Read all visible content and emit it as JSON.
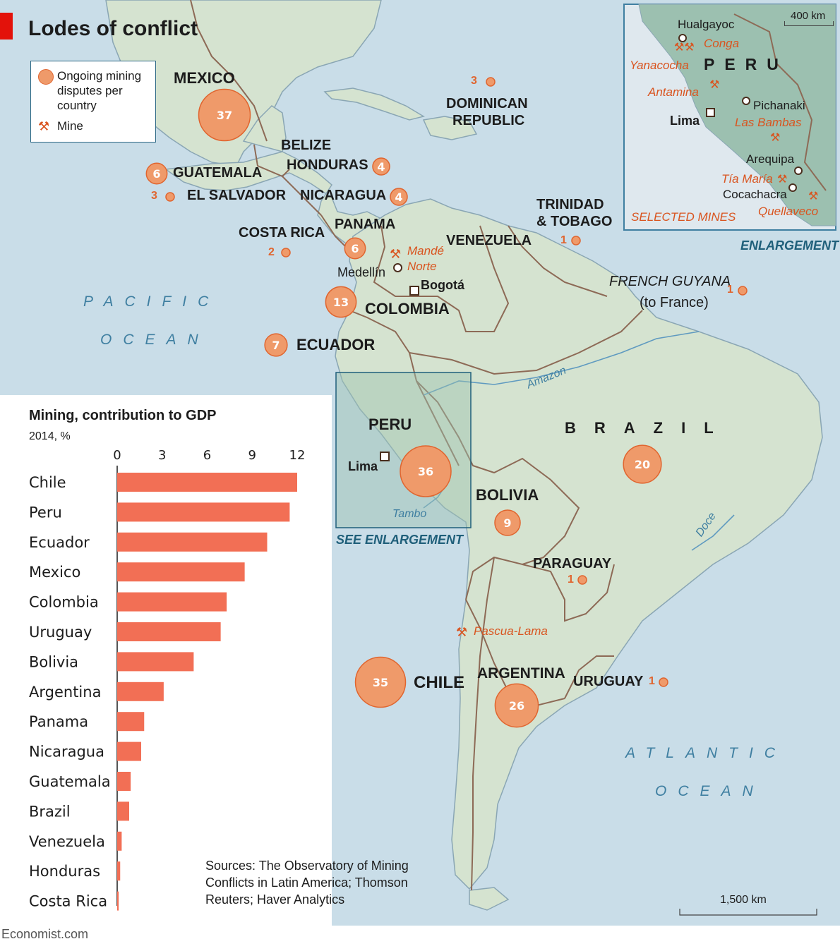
{
  "title": "Lodes of conflict",
  "legend": {
    "disputes_label": "Ongoing mining disputes per country",
    "mine_label": "Mine"
  },
  "oceans": {
    "pacific_1": "PACIFIC",
    "pacific_2": "OCEAN",
    "atlantic_1": "ATLANTIC",
    "atlantic_2": "OCEAN"
  },
  "countries": {
    "mexico": {
      "name": "MEXICO",
      "disputes": "37"
    },
    "guatemala": {
      "name": "GUATEMALA",
      "disputes": "6"
    },
    "el_salvador": {
      "name": "EL SALVADOR",
      "disputes": "3"
    },
    "belize": {
      "name": "BELIZE"
    },
    "honduras": {
      "name": "HONDURAS",
      "disputes": "4"
    },
    "nicaragua": {
      "name": "NICARAGUA",
      "disputes": "4"
    },
    "costa_rica": {
      "name": "COSTA RICA",
      "disputes": "2"
    },
    "panama": {
      "name": "PANAMA",
      "disputes": "6"
    },
    "dominican_republic": {
      "name_1": "DOMINICAN",
      "name_2": "REPUBLIC",
      "disputes": "3"
    },
    "trinidad": {
      "name_1": "TRINIDAD",
      "name_2": "& TOBAGO",
      "disputes": "1"
    },
    "venezuela": {
      "name": "VENEZUELA"
    },
    "french_guyana": {
      "name_1": "FRENCH GUYANA",
      "name_2": "(to France)",
      "disputes": "1"
    },
    "colombia": {
      "name": "COLOMBIA",
      "disputes": "13"
    },
    "ecuador": {
      "name": "ECUADOR",
      "disputes": "7"
    },
    "peru": {
      "name": "PERU",
      "disputes": "36"
    },
    "bolivia": {
      "name": "BOLIVIA",
      "disputes": "9"
    },
    "brazil": {
      "name": "BRAZIL",
      "disputes": "20"
    },
    "paraguay": {
      "name": "PARAGUAY",
      "disputes": "1"
    },
    "chile": {
      "name": "CHILE",
      "disputes": "35"
    },
    "argentina": {
      "name": "ARGENTINA",
      "disputes": "26"
    },
    "uruguay": {
      "name": "URUGUAY",
      "disputes": "1"
    }
  },
  "cities": {
    "medellin": "Medellín",
    "bogota": "Bogotá",
    "lima": "Lima"
  },
  "mines": {
    "mande_1": "Mandé",
    "mande_2": "Norte",
    "pascua_lama": "Pascua-Lama"
  },
  "rivers": {
    "amazon": "Amazon",
    "tambo": "Tambo",
    "doce": "Doce"
  },
  "see_enlargement": "SEE ENLARGEMENT",
  "scale_main": "1,500 km",
  "inset": {
    "country": "PERU",
    "scale": "400 km",
    "hualgayoc": "Hualgayoc",
    "conga": "Conga",
    "yanacocha": "Yanacocha",
    "antamina": "Antamina",
    "pichanaki": "Pichanaki",
    "lima": "Lima",
    "las_bambas": "Las Bambas",
    "arequipa": "Arequipa",
    "tia_maria": "Tía María",
    "cocachacra": "Cocachacra",
    "quellaveco": "Quellaveco",
    "selected_mines": "SELECTED MINES",
    "enlargement": "ENLARGEMENT"
  },
  "sources": {
    "line1": "Sources: The Observatory of Mining",
    "line2": "Conflicts in Latin America; Thomson",
    "line3": "Reuters; Haver Analytics"
  },
  "footer": "Economist.com",
  "colors": {
    "bar": "#f26f55",
    "land": "#d5e3d0",
    "sea": "#c9dde8",
    "border": "#8d6a56",
    "accent": "#e3120b"
  },
  "chart_data": {
    "type": "bar",
    "orientation": "horizontal",
    "title": "Mining, contribution to GDP",
    "subtitle": "2014, %",
    "categories": [
      "Chile",
      "Peru",
      "Ecuador",
      "Mexico",
      "Colombia",
      "Uruguay",
      "Bolivia",
      "Argentina",
      "Panama",
      "Nicaragua",
      "Guatemala",
      "Brazil",
      "Venezuela",
      "Honduras",
      "Costa Rica"
    ],
    "values": [
      12.0,
      11.5,
      10.0,
      8.5,
      7.3,
      6.9,
      5.1,
      3.1,
      1.8,
      1.6,
      0.9,
      0.8,
      0.3,
      0.2,
      0.1
    ],
    "xlim": [
      0,
      12
    ],
    "ticks": [
      0,
      3,
      6,
      9,
      12
    ],
    "grid": true
  }
}
